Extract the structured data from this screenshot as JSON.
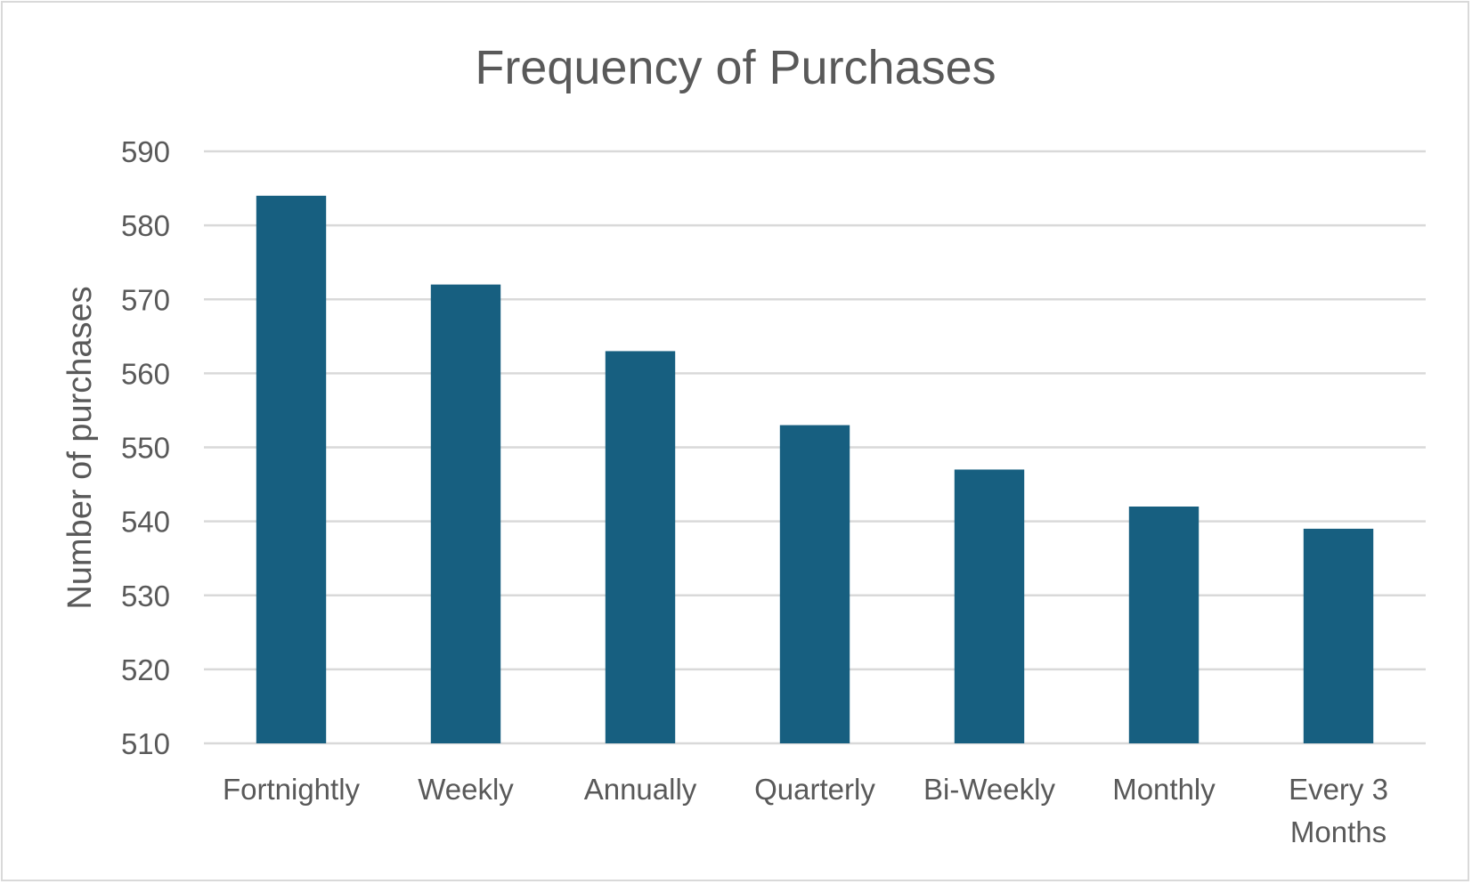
{
  "chart_data": {
    "type": "bar",
    "title": "Frequency of Purchases",
    "xlabel": "",
    "ylabel": "Number of purchases",
    "categories": [
      [
        "Fortnightly"
      ],
      [
        "Weekly"
      ],
      [
        "Annually"
      ],
      [
        "Quarterly"
      ],
      [
        "Bi-Weekly"
      ],
      [
        "Monthly"
      ],
      [
        "Every 3",
        "Months"
      ]
    ],
    "values": [
      584,
      572,
      563,
      553,
      547,
      542,
      539
    ],
    "ylim": [
      510,
      590
    ],
    "yticks": [
      510,
      520,
      530,
      540,
      550,
      560,
      570,
      580,
      590
    ],
    "grid": true,
    "legend": "none",
    "colors": {
      "bar": "#175f80",
      "text": "#595959",
      "grid": "#d9d9d9"
    }
  }
}
